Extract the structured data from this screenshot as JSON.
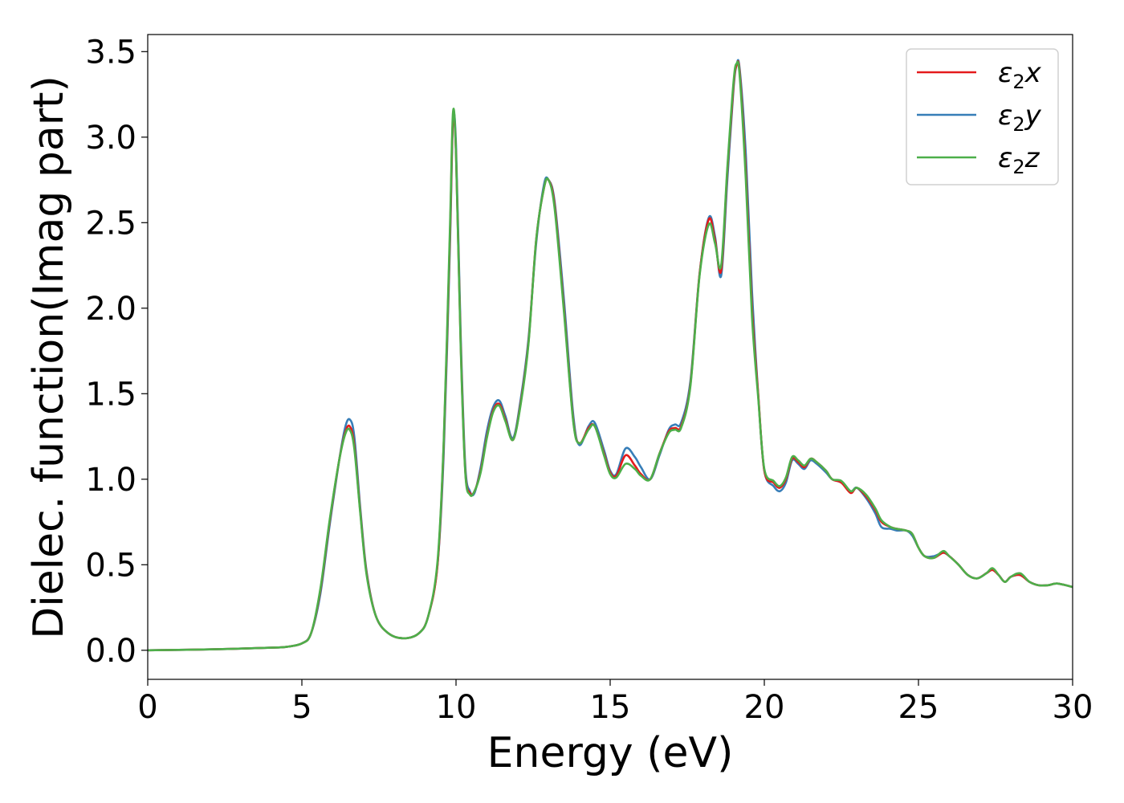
{
  "chart_data": {
    "type": "line",
    "xlabel": "Energy (eV)",
    "ylabel": "Dielec. function(Imag part)",
    "xlim": [
      0,
      30
    ],
    "ylim": [
      -0.17,
      3.6
    ],
    "xticks": [
      0,
      5,
      10,
      15,
      20,
      25,
      30
    ],
    "yticks": [
      0.0,
      0.5,
      1.0,
      1.5,
      2.0,
      2.5,
      3.0,
      3.5
    ],
    "xtick_labels": [
      "0",
      "5",
      "10",
      "15",
      "20",
      "25",
      "30"
    ],
    "ytick_labels": [
      "0.0",
      "0.5",
      "1.0",
      "1.5",
      "2.0",
      "2.5",
      "3.0",
      "3.5"
    ],
    "grid": false,
    "legend_position": "top-right",
    "legend": [
      {
        "label": "ε₂x",
        "symbol": "ε",
        "sub": "2",
        "var": "x"
      },
      {
        "label": "ε₂y",
        "symbol": "ε",
        "sub": "2",
        "var": "y"
      },
      {
        "label": "ε₂z",
        "symbol": "ε",
        "sub": "2",
        "var": "z"
      }
    ],
    "series": [
      {
        "name": "ε₂x",
        "color": "#e41a1c",
        "x": [
          0,
          2,
          4,
          4.5,
          5,
          5.3,
          5.6,
          5.9,
          6.2,
          6.4,
          6.55,
          6.7,
          6.9,
          7.1,
          7.4,
          7.8,
          8.3,
          8.8,
          9.1,
          9.4,
          9.6,
          9.8,
          9.9,
          10.0,
          10.15,
          10.3,
          10.45,
          10.6,
          10.8,
          11.0,
          11.2,
          11.4,
          11.6,
          11.85,
          12.1,
          12.35,
          12.6,
          12.85,
          13.0,
          13.2,
          13.5,
          13.8,
          14.0,
          14.3,
          14.5,
          14.8,
          15.0,
          15.2,
          15.5,
          15.8,
          16.0,
          16.3,
          16.6,
          16.9,
          17.1,
          17.3,
          17.6,
          17.9,
          18.2,
          18.4,
          18.6,
          18.8,
          19.0,
          19.1,
          19.2,
          19.4,
          19.6,
          19.8,
          20.0,
          20.3,
          20.5,
          20.7,
          20.9,
          21.1,
          21.3,
          21.5,
          21.7,
          22.0,
          22.2,
          22.5,
          22.8,
          23.0,
          23.3,
          23.6,
          23.8,
          24.1,
          24.3,
          24.6,
          24.8,
          25.0,
          25.2,
          25.5,
          25.8,
          26.0,
          26.3,
          26.6,
          26.9,
          27.2,
          27.4,
          27.6,
          27.8,
          28.0,
          28.3,
          28.6,
          28.9,
          29.2,
          29.5,
          30.0
        ],
        "y": [
          0.0,
          0.005,
          0.015,
          0.02,
          0.04,
          0.1,
          0.35,
          0.75,
          1.1,
          1.27,
          1.31,
          1.2,
          0.8,
          0.45,
          0.2,
          0.1,
          0.07,
          0.1,
          0.2,
          0.5,
          1.2,
          2.4,
          3.1,
          2.9,
          1.8,
          1.05,
          0.92,
          0.93,
          1.05,
          1.25,
          1.4,
          1.44,
          1.35,
          1.23,
          1.45,
          1.8,
          2.4,
          2.7,
          2.75,
          2.6,
          2.0,
          1.35,
          1.21,
          1.3,
          1.31,
          1.15,
          1.04,
          1.02,
          1.14,
          1.08,
          1.03,
          1.0,
          1.15,
          1.28,
          1.3,
          1.31,
          1.55,
          2.2,
          2.52,
          2.4,
          2.22,
          2.8,
          3.3,
          3.42,
          3.38,
          2.8,
          2.0,
          1.5,
          1.05,
          0.98,
          0.95,
          1.0,
          1.12,
          1.1,
          1.07,
          1.12,
          1.1,
          1.05,
          1.0,
          0.98,
          0.92,
          0.95,
          0.9,
          0.82,
          0.75,
          0.72,
          0.71,
          0.7,
          0.68,
          0.6,
          0.55,
          0.54,
          0.57,
          0.55,
          0.5,
          0.44,
          0.42,
          0.45,
          0.47,
          0.44,
          0.4,
          0.43,
          0.44,
          0.4,
          0.38,
          0.38,
          0.39,
          0.37
        ]
      },
      {
        "name": "ε₂y",
        "color": "#377eb8",
        "x": [
          0,
          2,
          4,
          4.5,
          5,
          5.3,
          5.6,
          5.9,
          6.2,
          6.4,
          6.55,
          6.7,
          6.9,
          7.1,
          7.4,
          7.8,
          8.3,
          8.8,
          9.1,
          9.4,
          9.6,
          9.8,
          9.9,
          10.0,
          10.15,
          10.3,
          10.45,
          10.6,
          10.8,
          11.0,
          11.2,
          11.4,
          11.6,
          11.85,
          12.1,
          12.35,
          12.6,
          12.85,
          13.0,
          13.2,
          13.5,
          13.8,
          14.0,
          14.3,
          14.5,
          14.8,
          15.0,
          15.2,
          15.5,
          15.8,
          16.0,
          16.3,
          16.6,
          16.9,
          17.1,
          17.3,
          17.6,
          17.9,
          18.2,
          18.4,
          18.6,
          18.8,
          19.0,
          19.1,
          19.2,
          19.4,
          19.6,
          19.8,
          20.0,
          20.3,
          20.5,
          20.7,
          20.9,
          21.1,
          21.3,
          21.5,
          21.7,
          22.0,
          22.2,
          22.5,
          22.8,
          23.0,
          23.3,
          23.6,
          23.8,
          24.1,
          24.3,
          24.6,
          24.8,
          25.0,
          25.2,
          25.5,
          25.8,
          26.0,
          26.3,
          26.6,
          26.9,
          27.2,
          27.4,
          27.6,
          27.8,
          28.0,
          28.3,
          28.6,
          28.9,
          29.2,
          29.5,
          30.0
        ],
        "y": [
          0.0,
          0.005,
          0.015,
          0.02,
          0.04,
          0.1,
          0.33,
          0.73,
          1.1,
          1.3,
          1.35,
          1.25,
          0.82,
          0.46,
          0.2,
          0.1,
          0.07,
          0.1,
          0.2,
          0.5,
          1.15,
          2.35,
          3.08,
          2.95,
          1.85,
          1.08,
          0.93,
          0.92,
          1.07,
          1.28,
          1.42,
          1.46,
          1.37,
          1.24,
          1.47,
          1.82,
          2.38,
          2.72,
          2.75,
          2.62,
          2.05,
          1.38,
          1.2,
          1.31,
          1.33,
          1.17,
          1.05,
          1.03,
          1.18,
          1.13,
          1.07,
          1.0,
          1.14,
          1.29,
          1.32,
          1.33,
          1.57,
          2.2,
          2.53,
          2.42,
          2.19,
          2.75,
          3.28,
          3.42,
          3.4,
          2.9,
          2.1,
          1.5,
          1.05,
          0.96,
          0.93,
          0.98,
          1.11,
          1.09,
          1.06,
          1.11,
          1.09,
          1.04,
          1.0,
          0.98,
          0.93,
          0.95,
          0.89,
          0.8,
          0.72,
          0.71,
          0.7,
          0.7,
          0.67,
          0.6,
          0.55,
          0.55,
          0.57,
          0.55,
          0.5,
          0.44,
          0.42,
          0.45,
          0.47,
          0.44,
          0.4,
          0.43,
          0.44,
          0.4,
          0.38,
          0.38,
          0.39,
          0.37
        ]
      },
      {
        "name": "ε₂z",
        "color": "#4daf4a",
        "x": [
          0,
          2,
          4,
          4.5,
          5,
          5.3,
          5.6,
          5.9,
          6.2,
          6.4,
          6.55,
          6.7,
          6.9,
          7.1,
          7.4,
          7.8,
          8.3,
          8.8,
          9.1,
          9.4,
          9.6,
          9.8,
          9.9,
          10.0,
          10.15,
          10.3,
          10.45,
          10.6,
          10.8,
          11.0,
          11.2,
          11.4,
          11.6,
          11.85,
          12.1,
          12.35,
          12.6,
          12.85,
          13.0,
          13.2,
          13.5,
          13.8,
          14.0,
          14.3,
          14.5,
          14.8,
          15.0,
          15.2,
          15.5,
          15.8,
          16.0,
          16.3,
          16.6,
          16.9,
          17.1,
          17.3,
          17.6,
          17.9,
          18.2,
          18.4,
          18.6,
          18.8,
          19.0,
          19.1,
          19.2,
          19.4,
          19.6,
          19.8,
          20.0,
          20.3,
          20.5,
          20.7,
          20.9,
          21.1,
          21.3,
          21.5,
          21.7,
          22.0,
          22.2,
          22.5,
          22.8,
          23.0,
          23.3,
          23.6,
          23.8,
          24.1,
          24.3,
          24.6,
          24.8,
          25.0,
          25.2,
          25.5,
          25.8,
          26.0,
          26.3,
          26.6,
          26.9,
          27.2,
          27.4,
          27.6,
          27.8,
          28.0,
          28.3,
          28.6,
          28.9,
          29.2,
          29.5,
          30.0
        ],
        "y": [
          0.0,
          0.005,
          0.015,
          0.02,
          0.04,
          0.1,
          0.36,
          0.76,
          1.1,
          1.26,
          1.29,
          1.18,
          0.79,
          0.44,
          0.2,
          0.1,
          0.07,
          0.1,
          0.2,
          0.52,
          1.22,
          2.45,
          3.14,
          2.9,
          1.78,
          1.04,
          0.91,
          0.93,
          1.04,
          1.24,
          1.39,
          1.43,
          1.34,
          1.23,
          1.44,
          1.79,
          2.4,
          2.7,
          2.75,
          2.58,
          1.98,
          1.34,
          1.21,
          1.29,
          1.31,
          1.14,
          1.03,
          1.01,
          1.09,
          1.06,
          1.02,
          1.0,
          1.15,
          1.27,
          1.29,
          1.3,
          1.54,
          2.19,
          2.49,
          2.38,
          2.25,
          2.82,
          3.32,
          3.43,
          3.36,
          2.75,
          1.95,
          1.48,
          1.06,
          0.99,
          0.96,
          1.01,
          1.13,
          1.11,
          1.08,
          1.12,
          1.1,
          1.05,
          1.0,
          0.99,
          0.93,
          0.95,
          0.91,
          0.83,
          0.76,
          0.72,
          0.71,
          0.7,
          0.68,
          0.6,
          0.55,
          0.54,
          0.58,
          0.55,
          0.5,
          0.44,
          0.42,
          0.45,
          0.48,
          0.44,
          0.4,
          0.43,
          0.45,
          0.4,
          0.38,
          0.38,
          0.39,
          0.37
        ]
      }
    ]
  }
}
